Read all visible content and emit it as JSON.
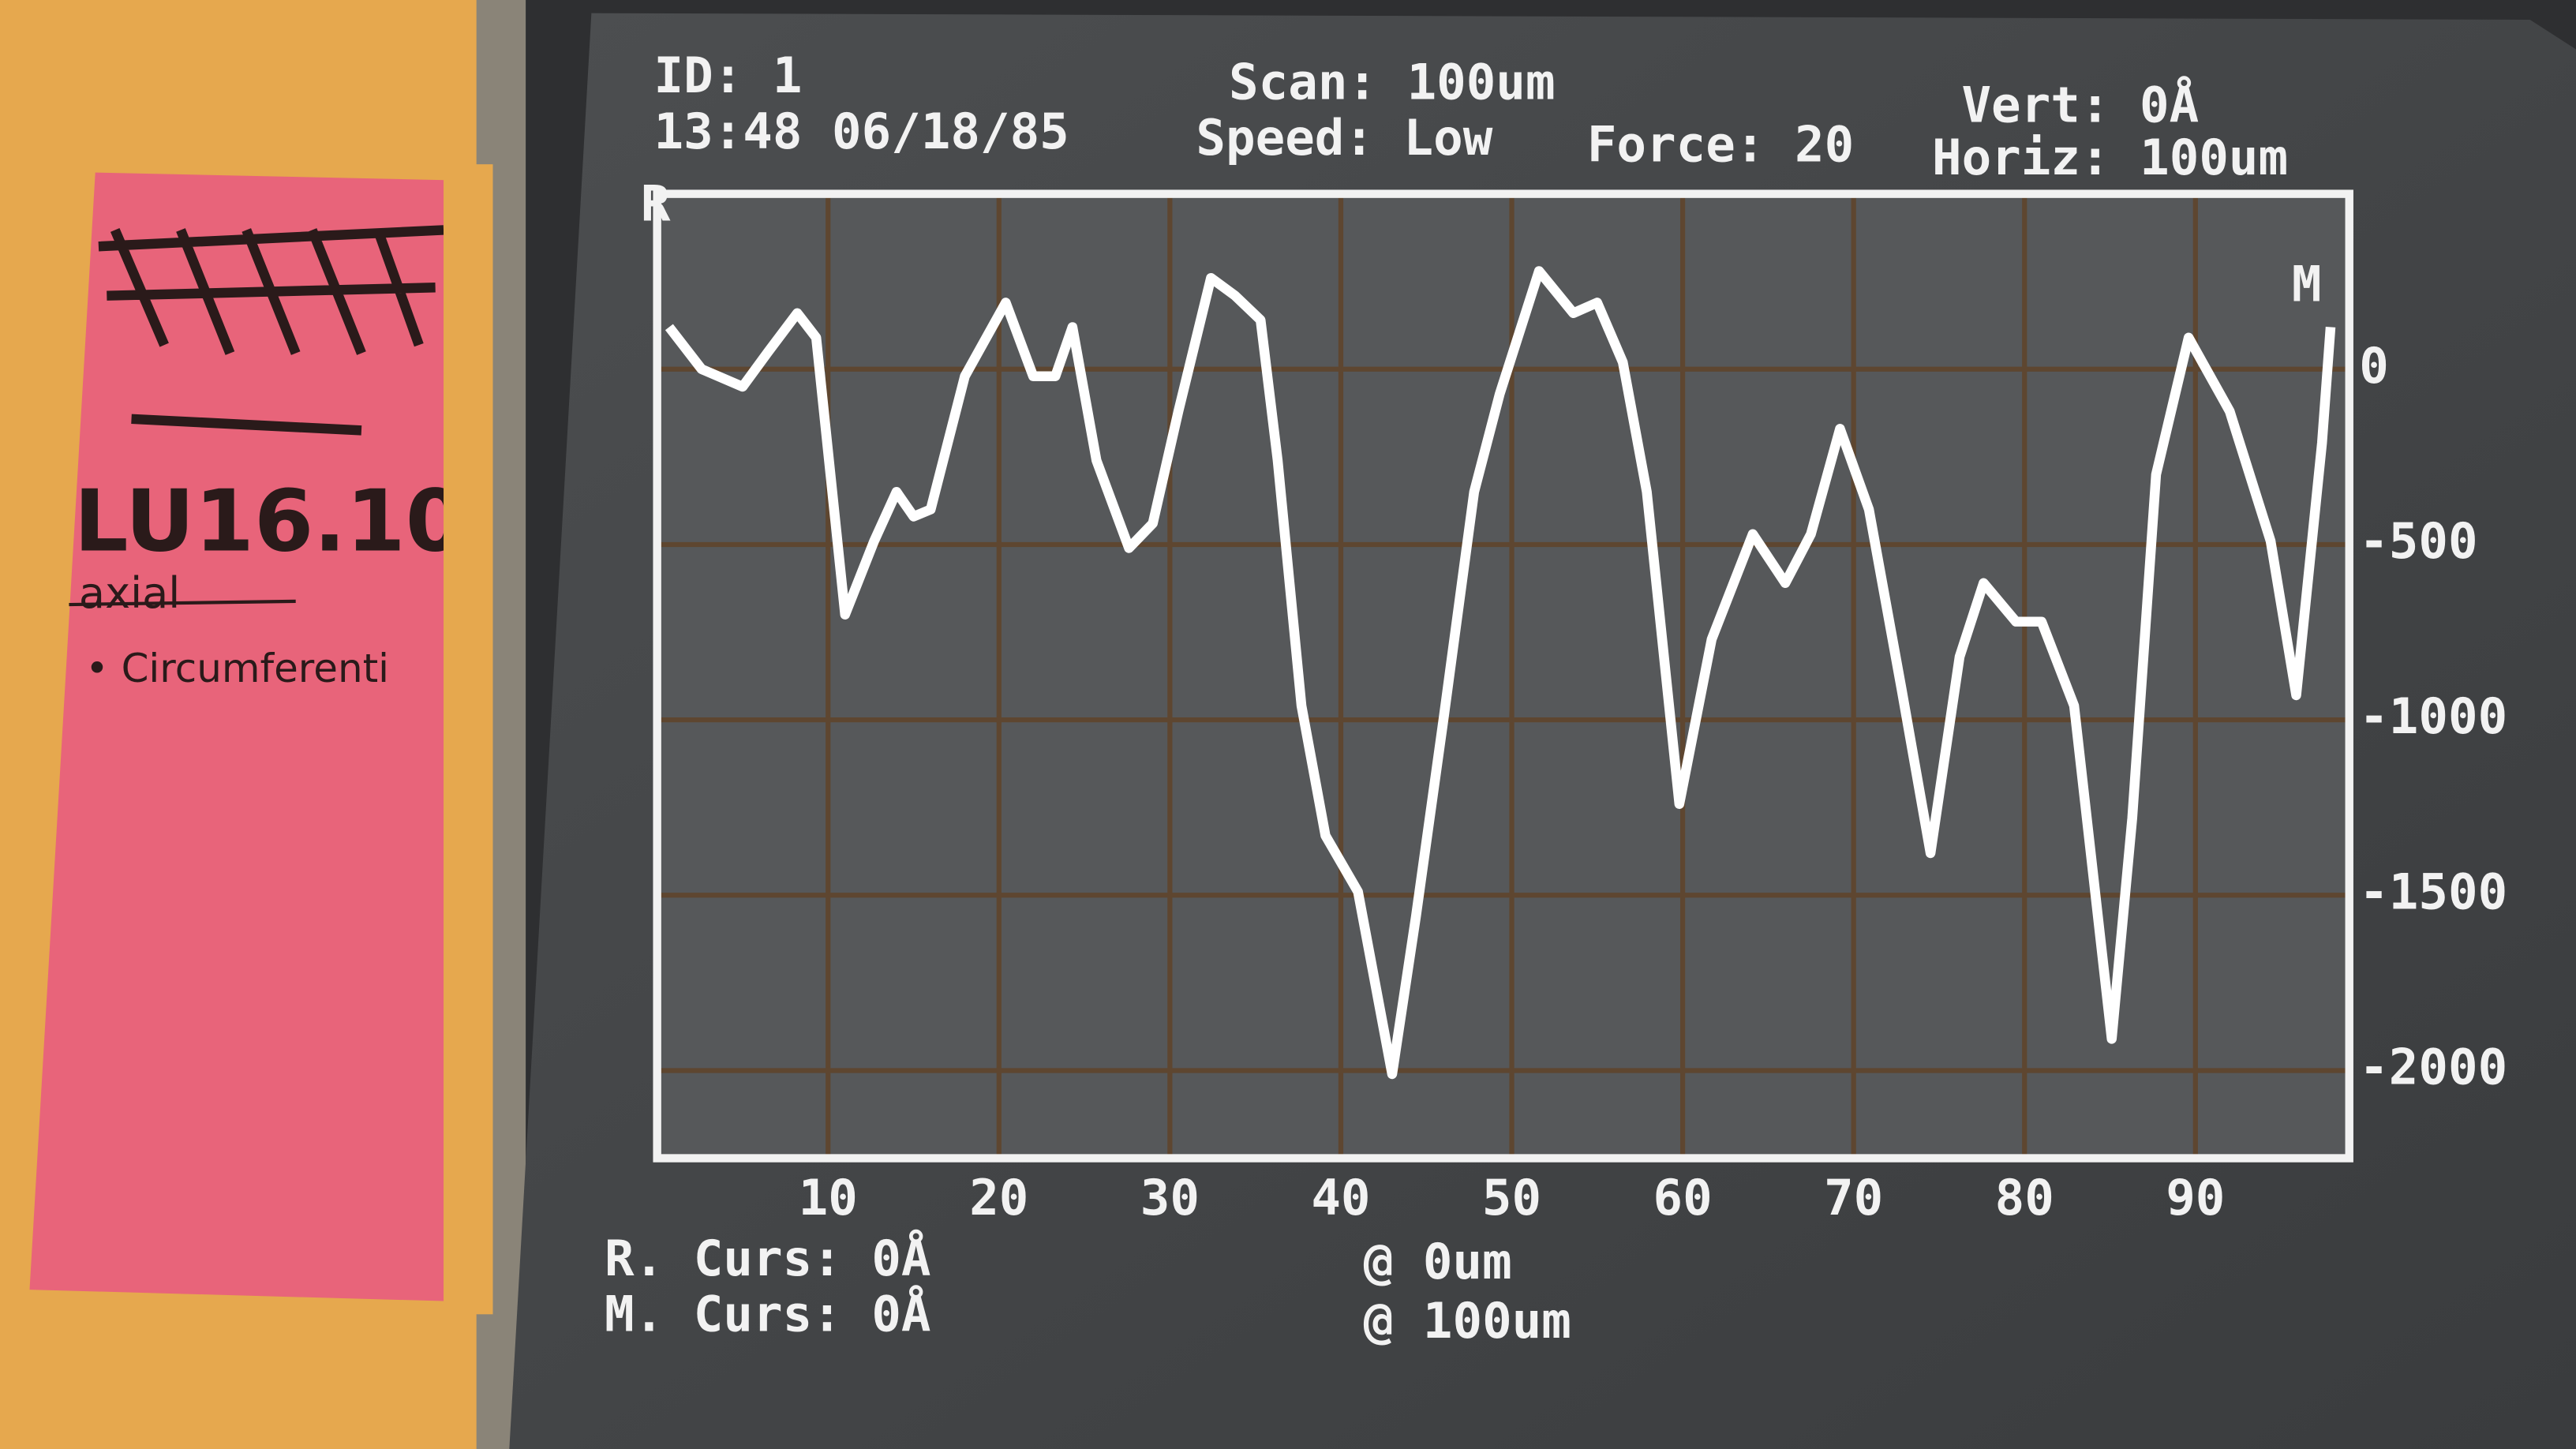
{
  "chart_data": {
    "type": "line",
    "annotations": [
      "ID: 1",
      "13:48 06/18/85",
      "Scan: 100um",
      "Speed: Low",
      "Force: 20",
      "Vert: 0Å",
      "Horiz: 100um",
      "R. Curs: 0Å",
      "@ 0um",
      "M. Curs: 0Å",
      "@ 100um",
      "R",
      "M"
    ],
    "x": [
      0.7,
      2.6,
      5,
      6.5,
      8.2,
      9.3,
      11,
      12.7,
      14,
      15,
      16,
      18,
      20.4,
      22,
      23.3,
      24.3,
      25.7,
      27.6,
      29,
      30.5,
      32.4,
      33.8,
      35.3,
      36.3,
      37.7,
      39.1,
      41,
      43,
      44.4,
      46,
      47.8,
      49.3,
      51.6,
      53.6,
      55,
      56.5,
      57.9,
      59.8,
      61.7,
      64.1,
      66,
      67.5,
      69.2,
      70.9,
      72.8,
      74.5,
      76.2,
      77.6,
      79.5,
      81,
      82.9,
      85.1,
      86.3,
      87.7,
      89.6,
      92,
      94.4,
      95.9,
      97.4,
      97.9
    ],
    "series": [
      {
        "color": "#ffffff",
        "values": [
          120,
          0,
          -50,
          50,
          160,
          90,
          -700,
          -490,
          -350,
          -420,
          -400,
          -20,
          190,
          -20,
          -20,
          120,
          -260,
          -510,
          -440,
          -120,
          260,
          210,
          140,
          -260,
          -960,
          -1330,
          -1490,
          -2010,
          -1560,
          -1000,
          -350,
          -70,
          280,
          160,
          190,
          20,
          -350,
          -1240,
          -770,
          -470,
          -610,
          -470,
          -170,
          -400,
          -910,
          -1380,
          -820,
          -610,
          -720,
          -720,
          -960,
          -1910,
          -1280,
          -300,
          90,
          -120,
          -490,
          -930,
          -210,
          120
        ]
      }
    ],
    "xlim": [
      0,
      99
    ],
    "ylim": [
      -2250,
      500
    ],
    "xticks": [
      10,
      20,
      30,
      40,
      50,
      60,
      70,
      80,
      90
    ],
    "yticks": [
      0,
      -500,
      -1000,
      -1500,
      -2000
    ],
    "grid": true
  },
  "note": {
    "label": "LU16.10",
    "struck": "axial",
    "item": "• Circumferenti"
  }
}
